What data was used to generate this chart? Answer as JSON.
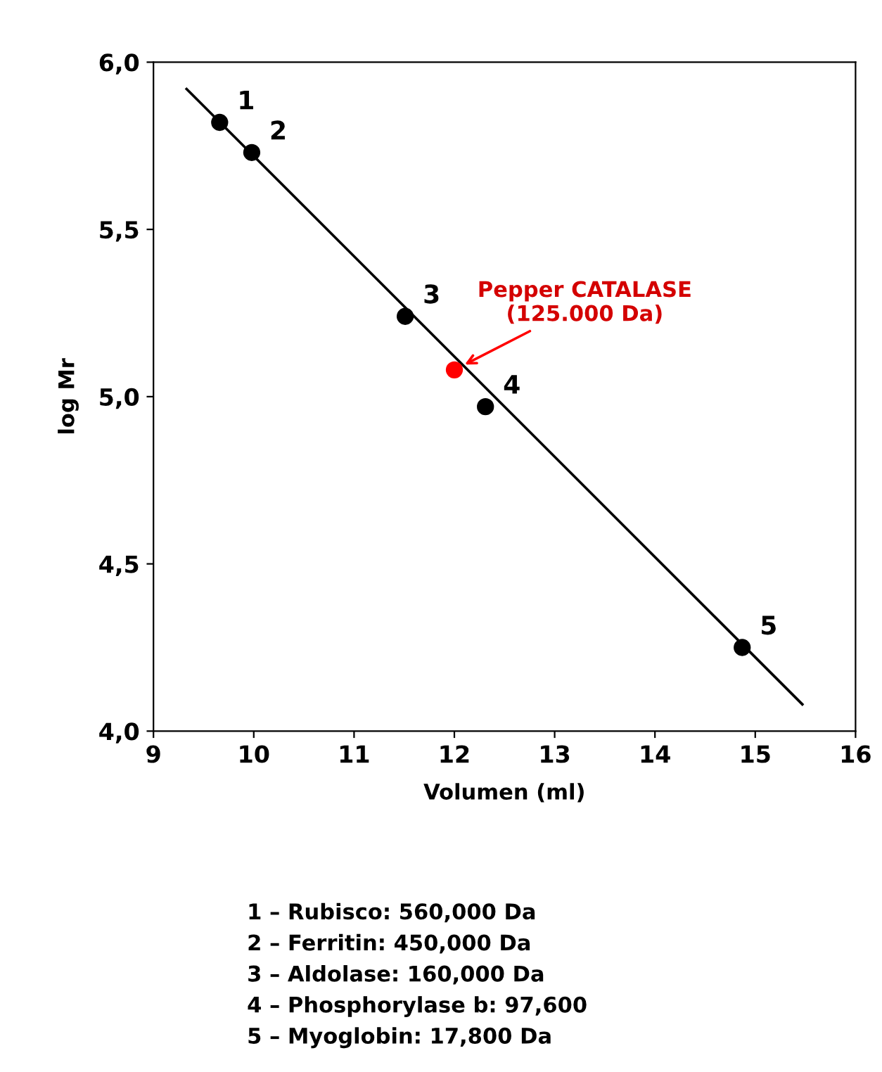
{
  "chart_data": {
    "type": "scatter",
    "xlabel": "Volumen (ml)",
    "ylabel": "log Mr",
    "xlim": [
      9,
      16
    ],
    "xticks": [
      9,
      10,
      11,
      12,
      13,
      14,
      15,
      16
    ],
    "ylim": [
      4.0,
      6.0
    ],
    "yticks": [
      {
        "value": 4.0,
        "label": "4,0"
      },
      {
        "value": 4.5,
        "label": "4,5"
      },
      {
        "value": 5.0,
        "label": "5,0"
      },
      {
        "value": 5.5,
        "label": "5,5"
      },
      {
        "value": 6.0,
        "label": "6,0"
      }
    ],
    "grid": false,
    "legend": false,
    "marker": "circle",
    "series": [
      {
        "type": "line",
        "color": "#000000",
        "x": [
          9.33,
          15.47
        ],
        "values": [
          5.92,
          4.08
        ],
        "marker": "none",
        "line_style": "solid"
      },
      {
        "color": "#000000",
        "x": [
          9.66,
          9.98,
          11.51,
          12.31,
          14.87
        ],
        "values": [
          5.82,
          5.73,
          5.24,
          4.97,
          4.25
        ]
      },
      {
        "color": "#ff0000",
        "x": [
          12.0
        ],
        "values": [
          5.08
        ]
      }
    ],
    "annotations": [
      {
        "text": "1",
        "x": 9.66,
        "y": 5.82
      },
      {
        "text": "2",
        "x": 9.98,
        "y": 5.73
      },
      {
        "text": "3",
        "x": 11.51,
        "y": 5.24
      },
      {
        "text": "4",
        "x": 12.31,
        "y": 4.97
      },
      {
        "text": "5",
        "x": 14.87,
        "y": 4.25
      },
      {
        "text": "Pepper CATALASE\n(125.000 Da)",
        "x": 12.0,
        "y": 5.08
      },
      "1 – Rubisco: 560,000 Da",
      "2 – Ferritin: 450,000 Da",
      "3 – Aldolase: 160,000 Da",
      "4 – Phosphorylase b: 97,600",
      "5 – Myoglobin: 17,800 Da"
    ]
  }
}
